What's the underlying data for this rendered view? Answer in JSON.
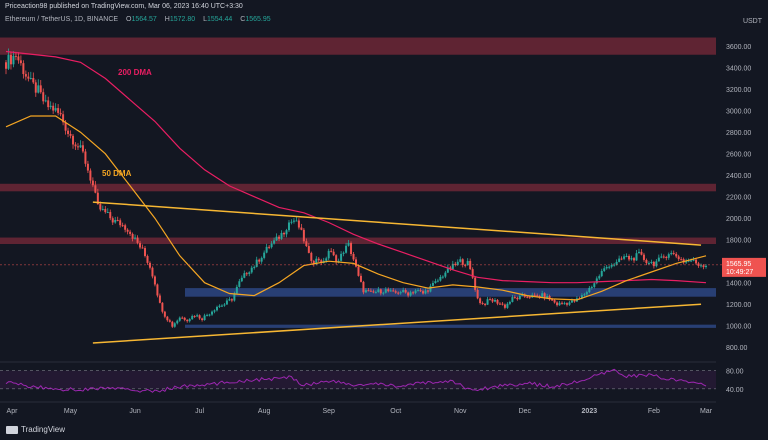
{
  "header": {
    "published": "Priceaction98 published on TradingView.com, Mar 06, 2023 16:40 UTC+3:30",
    "symbol": "Ethereum / TetherUS, 1D, BINANCE",
    "ohlc": [
      {
        "label": "O",
        "value": "1564.57"
      },
      {
        "label": "H",
        "value": "1572.80"
      },
      {
        "label": "L",
        "value": "1554.44"
      },
      {
        "label": "C",
        "value": "1565.95"
      }
    ],
    "unit": "USDT"
  },
  "footer": {
    "brand": "TradingView"
  },
  "colors": {
    "background": "#131722",
    "up": "#26a69a",
    "down": "#ef5350",
    "dma50": "#f5a623",
    "dma200": "#e91e63",
    "resistance_zone": "#7a2a3a",
    "support_zone": "#2e4a8a",
    "trendline": "#f7b733",
    "rsi": "#9c27b0"
  },
  "chart_data": {
    "type": "candlestick",
    "ylim": [
      700,
      3750
    ],
    "yticks": [
      "3600.00",
      "3400.00",
      "3200.00",
      "3000.00",
      "2800.00",
      "2600.00",
      "2400.00",
      "2200.00",
      "2000.00",
      "1800.00",
      "1600.00",
      "1400.00",
      "1200.00",
      "1000.00",
      "800.00"
    ],
    "xticks": [
      "Apr",
      "May",
      "Jun",
      "Jul",
      "Aug",
      "Sep",
      "Oct",
      "Nov",
      "Dec",
      "2023",
      "Feb",
      "Mar"
    ],
    "last_price": "1565.95",
    "countdown": "10:49:27",
    "annotations": [
      "200 DMA",
      "50 DMA"
    ],
    "price_path": [
      [
        0,
        3450
      ],
      [
        4,
        3520
      ],
      [
        7,
        3380
      ],
      [
        10,
        3250
      ],
      [
        13,
        3180
      ],
      [
        16,
        3050
      ],
      [
        19,
        3020
      ],
      [
        22,
        2950
      ],
      [
        25,
        2800
      ],
      [
        28,
        2700
      ],
      [
        31,
        2600
      ],
      [
        33,
        2450
      ],
      [
        35,
        2300
      ],
      [
        37,
        2100
      ],
      [
        40,
        2050
      ],
      [
        43,
        1980
      ],
      [
        46,
        1950
      ],
      [
        49,
        1900
      ],
      [
        52,
        1800
      ],
      [
        55,
        1700
      ],
      [
        58,
        1550
      ],
      [
        60,
        1400
      ],
      [
        62,
        1200
      ],
      [
        64,
        1100
      ],
      [
        67,
        1000
      ],
      [
        70,
        1080
      ],
      [
        73,
        1060
      ],
      [
        76,
        1100
      ],
      [
        79,
        1070
      ],
      [
        82,
        1120
      ],
      [
        85,
        1180
      ],
      [
        88,
        1200
      ],
      [
        91,
        1250
      ],
      [
        94,
        1400
      ],
      [
        97,
        1500
      ],
      [
        100,
        1560
      ],
      [
        103,
        1650
      ],
      [
        106,
        1740
      ],
      [
        109,
        1800
      ],
      [
        112,
        1880
      ],
      [
        114,
        1960
      ],
      [
        116,
        1980
      ],
      [
        118,
        1920
      ],
      [
        120,
        1800
      ],
      [
        122,
        1650
      ],
      [
        124,
        1600
      ],
      [
        126,
        1620
      ],
      [
        128,
        1580
      ],
      [
        130,
        1700
      ],
      [
        132,
        1640
      ],
      [
        134,
        1600
      ],
      [
        136,
        1700
      ],
      [
        138,
        1750
      ],
      [
        140,
        1620
      ],
      [
        142,
        1450
      ],
      [
        144,
        1330
      ],
      [
        147,
        1300
      ],
      [
        150,
        1320
      ],
      [
        153,
        1330
      ],
      [
        156,
        1300
      ],
      [
        159,
        1320
      ],
      [
        162,
        1300
      ],
      [
        165,
        1330
      ],
      [
        168,
        1300
      ],
      [
        171,
        1360
      ],
      [
        174,
        1420
      ],
      [
        177,
        1500
      ],
      [
        180,
        1550
      ],
      [
        183,
        1600
      ],
      [
        186,
        1580
      ],
      [
        188,
        1450
      ],
      [
        190,
        1250
      ],
      [
        192,
        1200
      ],
      [
        195,
        1240
      ],
      [
        198,
        1220
      ],
      [
        201,
        1180
      ],
      [
        204,
        1250
      ],
      [
        207,
        1260
      ],
      [
        210,
        1280
      ],
      [
        213,
        1270
      ],
      [
        216,
        1280
      ],
      [
        219,
        1250
      ],
      [
        222,
        1200
      ],
      [
        225,
        1210
      ],
      [
        228,
        1220
      ],
      [
        231,
        1250
      ],
      [
        234,
        1320
      ],
      [
        237,
        1400
      ],
      [
        240,
        1500
      ],
      [
        243,
        1570
      ],
      [
        246,
        1580
      ],
      [
        249,
        1640
      ],
      [
        252,
        1620
      ],
      [
        255,
        1660
      ],
      [
        258,
        1600
      ],
      [
        261,
        1580
      ],
      [
        264,
        1620
      ],
      [
        267,
        1680
      ],
      [
        270,
        1650
      ],
      [
        273,
        1600
      ],
      [
        276,
        1610
      ],
      [
        279,
        1570
      ],
      [
        282,
        1565
      ]
    ],
    "dma50_path": [
      [
        0,
        2850
      ],
      [
        10,
        2950
      ],
      [
        20,
        2950
      ],
      [
        30,
        2800
      ],
      [
        40,
        2600
      ],
      [
        50,
        2300
      ],
      [
        60,
        2000
      ],
      [
        70,
        1650
      ],
      [
        80,
        1400
      ],
      [
        90,
        1300
      ],
      [
        100,
        1280
      ],
      [
        110,
        1400
      ],
      [
        120,
        1560
      ],
      [
        130,
        1600
      ],
      [
        140,
        1580
      ],
      [
        150,
        1480
      ],
      [
        160,
        1400
      ],
      [
        170,
        1350
      ],
      [
        180,
        1380
      ],
      [
        190,
        1360
      ],
      [
        200,
        1330
      ],
      [
        210,
        1280
      ],
      [
        220,
        1250
      ],
      [
        230,
        1240
      ],
      [
        240,
        1320
      ],
      [
        250,
        1420
      ],
      [
        260,
        1500
      ],
      [
        270,
        1580
      ],
      [
        282,
        1650
      ]
    ],
    "dma200_path": [
      [
        0,
        3550
      ],
      [
        20,
        3500
      ],
      [
        30,
        3450
      ],
      [
        40,
        3300
      ],
      [
        50,
        3100
      ],
      [
        60,
        2900
      ],
      [
        70,
        2650
      ],
      [
        80,
        2450
      ],
      [
        90,
        2300
      ],
      [
        100,
        2200
      ],
      [
        110,
        2100
      ],
      [
        120,
        2050
      ],
      [
        130,
        1960
      ],
      [
        140,
        1850
      ],
      [
        150,
        1760
      ],
      [
        160,
        1680
      ],
      [
        170,
        1600
      ],
      [
        180,
        1520
      ],
      [
        190,
        1450
      ],
      [
        200,
        1420
      ],
      [
        210,
        1410
      ],
      [
        220,
        1400
      ],
      [
        230,
        1400
      ],
      [
        240,
        1410
      ],
      [
        250,
        1420
      ],
      [
        260,
        1430
      ],
      [
        270,
        1420
      ],
      [
        282,
        1400
      ]
    ],
    "resistance_zones": [
      [
        3520,
        3680
      ],
      [
        2250,
        2320
      ],
      [
        1760,
        1820
      ]
    ],
    "support_zones": [
      [
        1270,
        1350
      ],
      [
        980,
        1010
      ]
    ],
    "trendlines": [
      {
        "from": [
          35,
          2150
        ],
        "to": [
          280,
          1750
        ]
      },
      {
        "from": [
          35,
          840
        ],
        "to": [
          280,
          1200
        ]
      }
    ],
    "rsi": {
      "ylim": [
        20,
        90
      ],
      "levels": [
        "80.00",
        "40.00"
      ],
      "path": [
        [
          0,
          55
        ],
        [
          10,
          45
        ],
        [
          20,
          40
        ],
        [
          30,
          38
        ],
        [
          40,
          42
        ],
        [
          50,
          38
        ],
        [
          60,
          34
        ],
        [
          70,
          45
        ],
        [
          80,
          48
        ],
        [
          90,
          55
        ],
        [
          100,
          60
        ],
        [
          110,
          62
        ],
        [
          115,
          66
        ],
        [
          120,
          48
        ],
        [
          130,
          58
        ],
        [
          140,
          48
        ],
        [
          150,
          50
        ],
        [
          160,
          46
        ],
        [
          170,
          54
        ],
        [
          180,
          56
        ],
        [
          188,
          36
        ],
        [
          200,
          48
        ],
        [
          210,
          52
        ],
        [
          220,
          45
        ],
        [
          230,
          55
        ],
        [
          240,
          72
        ],
        [
          245,
          80
        ],
        [
          250,
          68
        ],
        [
          260,
          70
        ],
        [
          270,
          58
        ],
        [
          282,
          50
        ]
      ]
    }
  }
}
